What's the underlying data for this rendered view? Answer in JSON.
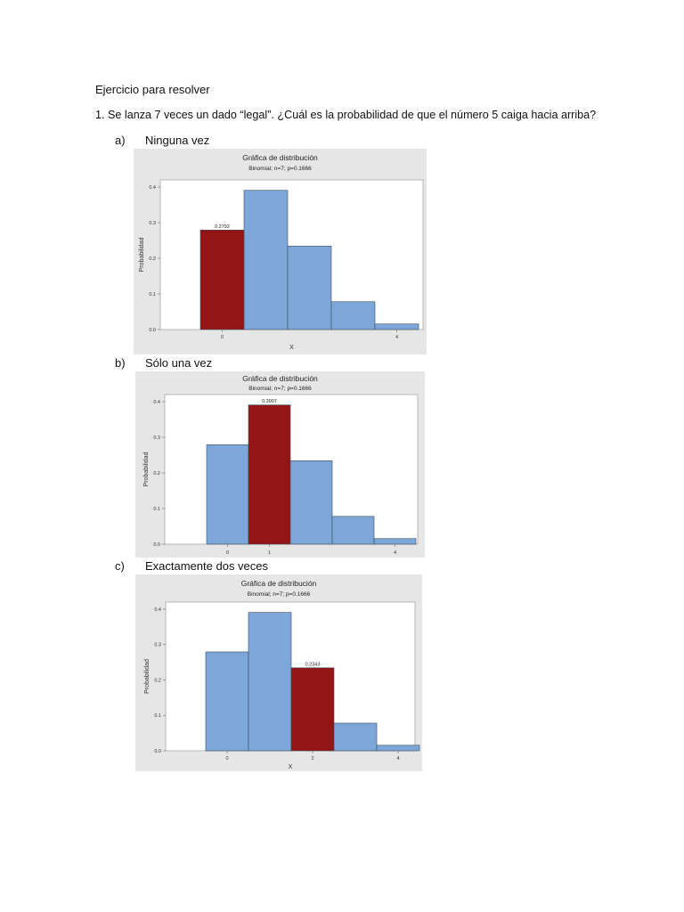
{
  "document": {
    "heading": "Ejercicio para resolver",
    "question": "1. Se lanza 7 veces un dado “legal”. ¿Cuál es la probabilidad de que el número 5 caiga hacia arriba?",
    "items": [
      {
        "letter": "a)",
        "label": "Ninguna vez"
      },
      {
        "letter": "b)",
        "label": "Sólo una vez"
      },
      {
        "letter": "c)",
        "label": "Exactamente dos veces"
      }
    ]
  },
  "colors": {
    "bar": "#7da7d9",
    "highlight": "#931516",
    "panel": "#e6e6e6",
    "plot_bg": "#ffffff"
  },
  "chart_data": [
    {
      "type": "bar",
      "title": "Gráfica de distribución",
      "subtitle": "Binomial; n=7; p=0.1666",
      "xlabel": "X",
      "ylabel": "Probabilidad",
      "categories": [
        0,
        1,
        2,
        3,
        4
      ],
      "values": [
        0.2792,
        0.3907,
        0.2343,
        0.078,
        0.0156
      ],
      "x_ticks": [
        "0",
        "4"
      ],
      "y_ticks": [
        "0.0",
        "0.1",
        "0.2",
        "0.3",
        "0.4"
      ],
      "ylim": [
        0,
        0.42
      ],
      "highlight_index": 0,
      "highlight_label": "0.2792"
    },
    {
      "type": "bar",
      "title": "Gráfica de distribución",
      "subtitle": "Binomial; n=7; p=0.1666",
      "xlabel": "",
      "ylabel": "Probabilidad",
      "categories": [
        0,
        1,
        2,
        3,
        4
      ],
      "values": [
        0.2792,
        0.3907,
        0.2343,
        0.078,
        0.0156
      ],
      "x_ticks": [
        "0",
        "1",
        "4"
      ],
      "y_ticks": [
        "0.0",
        "0.1",
        "0.2",
        "0.3",
        "0.4"
      ],
      "ylim": [
        0,
        0.42
      ],
      "highlight_index": 1,
      "highlight_label": "0.3907"
    },
    {
      "type": "bar",
      "title": "Gráfica de distribución",
      "subtitle": "Binomial; n=7; p=0.1666",
      "xlabel": "X",
      "ylabel": "Probabilidad",
      "categories": [
        0,
        1,
        2,
        3,
        4
      ],
      "values": [
        0.2792,
        0.3907,
        0.2343,
        0.078,
        0.0156
      ],
      "x_ticks": [
        "0",
        "2",
        "4"
      ],
      "y_ticks": [
        "0.0",
        "0.1",
        "0.2",
        "0.3",
        "0.4"
      ],
      "ylim": [
        0,
        0.42
      ],
      "highlight_index": 2,
      "highlight_label": "0.2343"
    }
  ]
}
